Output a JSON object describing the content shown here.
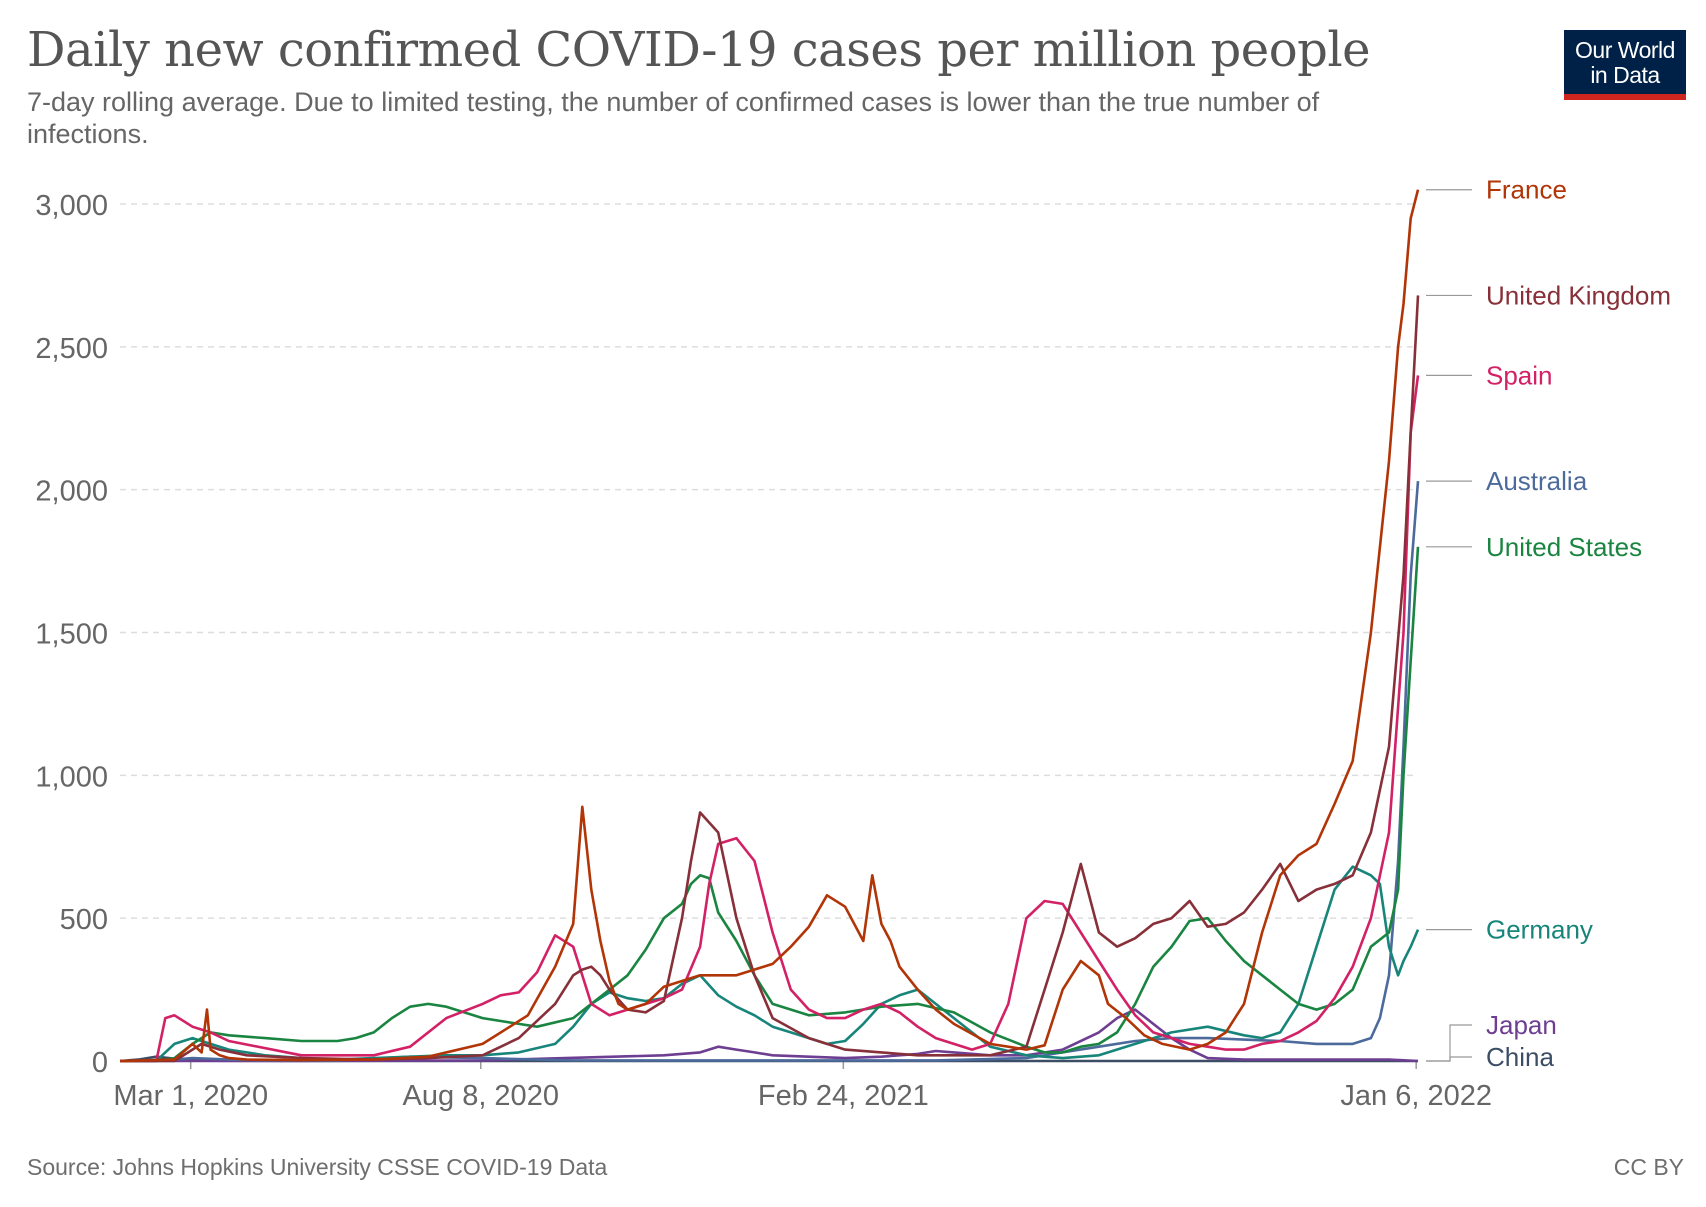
{
  "header": {
    "title": "Daily new confirmed COVID-19 cases per million people",
    "subtitle": "7-day rolling average. Due to limited testing, the number of confirmed cases is lower than the true number of infections."
  },
  "logo": {
    "line1": "Our World",
    "line2": "in Data",
    "bg_color": "#002147",
    "accent_color": "#ce261e"
  },
  "footer": {
    "source": "Source: Johns Hopkins University CSSE COVID-19 Data",
    "license": "CC BY"
  },
  "chart_data": {
    "type": "line",
    "title": "Daily new confirmed COVID-19 cases per million people",
    "xlabel": "",
    "ylabel": "",
    "ylim": [
      0,
      3000
    ],
    "y_ticks": [
      0,
      500,
      1000,
      1500,
      2000,
      2500,
      3000
    ],
    "y_tick_labels": [
      "0",
      "500",
      "1,000",
      "1,500",
      "2,000",
      "2,500",
      "3,000"
    ],
    "x_unit": "days since Jan 22, 2020",
    "xlim": [
      0,
      716
    ],
    "x_ticks": [
      {
        "x": 39,
        "label": "Mar 1, 2020"
      },
      {
        "x": 199,
        "label": "Aug 8, 2020"
      },
      {
        "x": 399,
        "label": "Feb 24, 2021"
      },
      {
        "x": 715,
        "label": "Jan 6, 2022"
      }
    ],
    "grid": true,
    "legend": "right, labels at line ends",
    "series": [
      {
        "name": "France",
        "color": "#b13507",
        "x": [
          0,
          30,
          40,
          45,
          48,
          50,
          55,
          60,
          70,
          100,
          140,
          170,
          200,
          225,
          240,
          250,
          255,
          260,
          265,
          270,
          275,
          280,
          290,
          300,
          320,
          340,
          360,
          370,
          380,
          390,
          400,
          410,
          415,
          420,
          425,
          430,
          440,
          450,
          460,
          480,
          500,
          510,
          520,
          530,
          540,
          545,
          555,
          565,
          575,
          590,
          600,
          610,
          620,
          630,
          640,
          650,
          660,
          670,
          680,
          690,
          700,
          705,
          708,
          712,
          716
        ],
        "y": [
          0,
          5,
          60,
          30,
          180,
          40,
          20,
          10,
          5,
          3,
          5,
          15,
          60,
          160,
          330,
          480,
          890,
          600,
          420,
          280,
          200,
          180,
          200,
          260,
          300,
          300,
          340,
          400,
          470,
          580,
          540,
          420,
          650,
          480,
          420,
          330,
          250,
          180,
          130,
          60,
          40,
          55,
          250,
          350,
          300,
          200,
          150,
          90,
          60,
          40,
          60,
          100,
          200,
          450,
          650,
          720,
          760,
          900,
          1050,
          1500,
          2100,
          2500,
          2650,
          2950,
          3050
        ]
      },
      {
        "name": "United Kingdom",
        "color": "#883039",
        "x": [
          0,
          30,
          45,
          55,
          70,
          100,
          140,
          170,
          200,
          220,
          240,
          250,
          255,
          260,
          265,
          270,
          280,
          290,
          300,
          310,
          315,
          320,
          330,
          340,
          350,
          360,
          380,
          400,
          420,
          440,
          460,
          480,
          500,
          510,
          520,
          530,
          540,
          550,
          560,
          570,
          580,
          590,
          600,
          610,
          620,
          630,
          640,
          650,
          660,
          670,
          680,
          690,
          700,
          708,
          712,
          716
        ],
        "y": [
          0,
          0,
          60,
          40,
          20,
          10,
          5,
          10,
          20,
          80,
          200,
          300,
          320,
          330,
          300,
          250,
          180,
          170,
          210,
          500,
          700,
          870,
          800,
          500,
          300,
          150,
          80,
          40,
          30,
          20,
          20,
          20,
          50,
          250,
          450,
          690,
          450,
          400,
          430,
          480,
          500,
          560,
          470,
          480,
          520,
          600,
          690,
          560,
          600,
          620,
          650,
          800,
          1100,
          1700,
          2200,
          2680
        ]
      },
      {
        "name": "Spain",
        "color": "#d32166",
        "x": [
          0,
          20,
          25,
          30,
          40,
          50,
          60,
          100,
          140,
          160,
          180,
          200,
          210,
          220,
          230,
          240,
          250,
          255,
          260,
          270,
          280,
          300,
          310,
          320,
          325,
          330,
          340,
          350,
          360,
          370,
          380,
          390,
          400,
          410,
          420,
          430,
          440,
          450,
          460,
          470,
          480,
          490,
          500,
          510,
          520,
          530,
          540,
          550,
          560,
          570,
          580,
          590,
          600,
          610,
          620,
          630,
          640,
          650,
          660,
          670,
          680,
          690,
          700,
          708,
          712,
          716
        ],
        "y": [
          0,
          0,
          150,
          160,
          120,
          100,
          70,
          20,
          20,
          50,
          150,
          200,
          230,
          240,
          310,
          440,
          400,
          300,
          200,
          160,
          180,
          220,
          250,
          400,
          620,
          760,
          780,
          700,
          450,
          250,
          180,
          150,
          150,
          180,
          200,
          170,
          120,
          80,
          60,
          40,
          60,
          200,
          500,
          560,
          550,
          450,
          350,
          250,
          160,
          100,
          80,
          60,
          50,
          40,
          40,
          60,
          70,
          100,
          140,
          220,
          330,
          500,
          800,
          1500,
          2200,
          2400
        ]
      },
      {
        "name": "Australia",
        "color": "#4c6a9c",
        "x": [
          0,
          20,
          40,
          60,
          80,
          120,
          160,
          200,
          250,
          300,
          350,
          400,
          450,
          500,
          520,
          540,
          560,
          580,
          600,
          620,
          640,
          660,
          680,
          690,
          695,
          700,
          705,
          708,
          712,
          716
        ],
        "y": [
          0,
          0,
          10,
          5,
          2,
          2,
          15,
          10,
          2,
          2,
          2,
          2,
          2,
          10,
          30,
          50,
          70,
          80,
          80,
          75,
          70,
          60,
          60,
          80,
          150,
          300,
          700,
          1100,
          1700,
          2030
        ]
      },
      {
        "name": "United States",
        "color": "#1a8541",
        "x": [
          0,
          20,
          30,
          40,
          50,
          60,
          80,
          100,
          120,
          130,
          140,
          150,
          160,
          170,
          180,
          200,
          210,
          220,
          230,
          250,
          260,
          270,
          280,
          290,
          300,
          310,
          315,
          320,
          325,
          330,
          340,
          350,
          360,
          380,
          400,
          420,
          440,
          460,
          480,
          500,
          510,
          520,
          530,
          540,
          550,
          560,
          570,
          580,
          590,
          600,
          610,
          620,
          630,
          640,
          650,
          660,
          670,
          680,
          690,
          700,
          705,
          708,
          712,
          716
        ],
        "y": [
          0,
          0,
          10,
          60,
          100,
          90,
          80,
          70,
          70,
          80,
          100,
          150,
          190,
          200,
          190,
          150,
          140,
          130,
          120,
          150,
          200,
          250,
          300,
          390,
          500,
          550,
          620,
          650,
          640,
          520,
          420,
          300,
          200,
          160,
          170,
          190,
          200,
          170,
          100,
          50,
          30,
          30,
          50,
          60,
          100,
          200,
          330,
          400,
          490,
          500,
          420,
          350,
          300,
          250,
          200,
          180,
          200,
          250,
          400,
          450,
          600,
          1000,
          1400,
          1800
        ]
      },
      {
        "name": "Germany",
        "color": "#18857b",
        "x": [
          0,
          20,
          25,
          30,
          40,
          50,
          60,
          80,
          100,
          120,
          140,
          160,
          180,
          200,
          220,
          240,
          250,
          260,
          270,
          280,
          290,
          300,
          310,
          320,
          330,
          340,
          350,
          360,
          370,
          380,
          390,
          400,
          410,
          420,
          430,
          440,
          450,
          460,
          470,
          480,
          500,
          520,
          540,
          560,
          580,
          600,
          620,
          630,
          640,
          650,
          660,
          670,
          680,
          690,
          695,
          700,
          705,
          708,
          712,
          716
        ],
        "y": [
          0,
          0,
          30,
          60,
          80,
          60,
          40,
          20,
          10,
          5,
          10,
          15,
          20,
          20,
          30,
          60,
          120,
          200,
          240,
          220,
          210,
          220,
          270,
          300,
          230,
          190,
          160,
          120,
          100,
          80,
          60,
          70,
          130,
          200,
          230,
          250,
          200,
          150,
          100,
          50,
          20,
          10,
          20,
          60,
          100,
          120,
          90,
          80,
          100,
          200,
          400,
          600,
          680,
          650,
          620,
          400,
          300,
          350,
          400,
          460
        ]
      },
      {
        "name": "Japan",
        "color": "#6d3e91",
        "x": [
          0,
          100,
          200,
          300,
          320,
          330,
          340,
          350,
          360,
          380,
          400,
          420,
          440,
          450,
          460,
          480,
          500,
          520,
          540,
          550,
          560,
          570,
          580,
          590,
          600,
          620,
          700,
          716
        ],
        "y": [
          0,
          0,
          2,
          20,
          30,
          50,
          40,
          30,
          20,
          15,
          10,
          15,
          25,
          35,
          30,
          20,
          20,
          40,
          100,
          150,
          180,
          130,
          80,
          40,
          10,
          5,
          5,
          0
        ]
      },
      {
        "name": "China",
        "color": "#3c4e66",
        "x": [
          0,
          10,
          20,
          30,
          40,
          50,
          100,
          200,
          300,
          400,
          500,
          600,
          716
        ],
        "y": [
          0,
          5,
          15,
          8,
          2,
          1,
          0,
          0,
          0,
          0,
          0,
          0,
          0
        ]
      }
    ]
  }
}
